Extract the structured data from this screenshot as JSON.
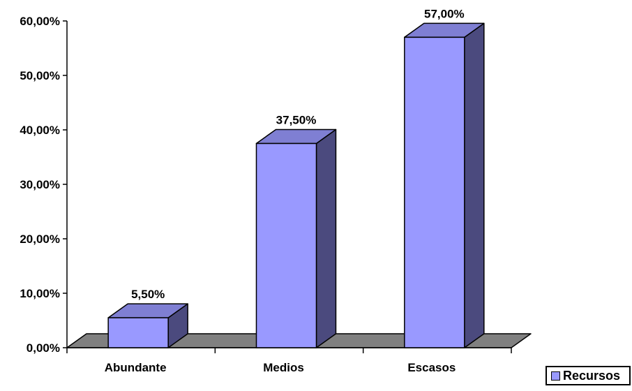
{
  "chart_data": {
    "type": "bar",
    "style": "3d-column",
    "categories": [
      "Abundante",
      "Medios",
      "Escasos"
    ],
    "series": [
      {
        "name": "Recursos",
        "values": [
          5.5,
          37.5,
          57.0
        ],
        "value_labels": [
          "5,50%",
          "37,50%",
          "57,00%"
        ]
      }
    ],
    "ylim": [
      0,
      60
    ],
    "y_ticks": [
      0,
      10,
      20,
      30,
      40,
      50,
      60
    ],
    "y_tick_labels": [
      "0,00%",
      "10,00%",
      "20,00%",
      "30,00%",
      "40,00%",
      "50,00%",
      "60,00%"
    ],
    "grid": false,
    "legend_position": "bottom-right",
    "colors": {
      "bar_front": "#9999FF",
      "bar_side": "#4B4A7E",
      "bar_top": "#7F7FD3",
      "floor": "#808080",
      "axis": "#000000"
    }
  },
  "legend": {
    "label": "Recursos"
  }
}
